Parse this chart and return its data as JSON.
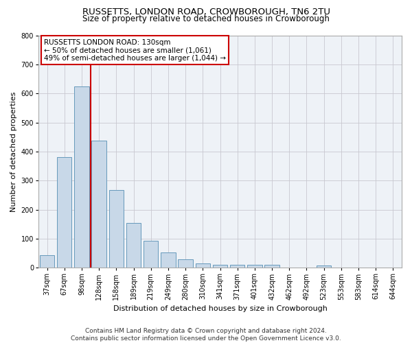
{
  "title": "RUSSETTS, LONDON ROAD, CROWBOROUGH, TN6 2TU",
  "subtitle": "Size of property relative to detached houses in Crowborough",
  "xlabel": "Distribution of detached houses by size in Crowborough",
  "ylabel": "Number of detached properties",
  "footer_line1": "Contains HM Land Registry data © Crown copyright and database right 2024.",
  "footer_line2": "Contains public sector information licensed under the Open Government Licence v3.0.",
  "categories": [
    "37sqm",
    "67sqm",
    "98sqm",
    "128sqm",
    "158sqm",
    "189sqm",
    "219sqm",
    "249sqm",
    "280sqm",
    "310sqm",
    "341sqm",
    "371sqm",
    "401sqm",
    "432sqm",
    "462sqm",
    "492sqm",
    "523sqm",
    "553sqm",
    "583sqm",
    "614sqm",
    "644sqm"
  ],
  "values": [
    43,
    382,
    625,
    438,
    268,
    155,
    94,
    52,
    28,
    15,
    10,
    10,
    10,
    10,
    0,
    0,
    8,
    0,
    0,
    0,
    0
  ],
  "bar_color": "#c8d8e8",
  "bar_edge_color": "#6699bb",
  "highlight_line_color": "#cc0000",
  "highlight_index": 2,
  "annotation_line1": "RUSSETTS LONDON ROAD: 130sqm",
  "annotation_line2": "← 50% of detached houses are smaller (1,061)",
  "annotation_line3": "49% of semi-detached houses are larger (1,044) →",
  "ylim": [
    0,
    800
  ],
  "yticks": [
    0,
    100,
    200,
    300,
    400,
    500,
    600,
    700,
    800
  ],
  "grid_color": "#c8c8d0",
  "bg_color": "#eef2f7",
  "title_fontsize": 9.5,
  "subtitle_fontsize": 8.5,
  "axis_label_fontsize": 8,
  "tick_fontsize": 7,
  "annotation_fontsize": 7.5,
  "footer_fontsize": 6.5
}
